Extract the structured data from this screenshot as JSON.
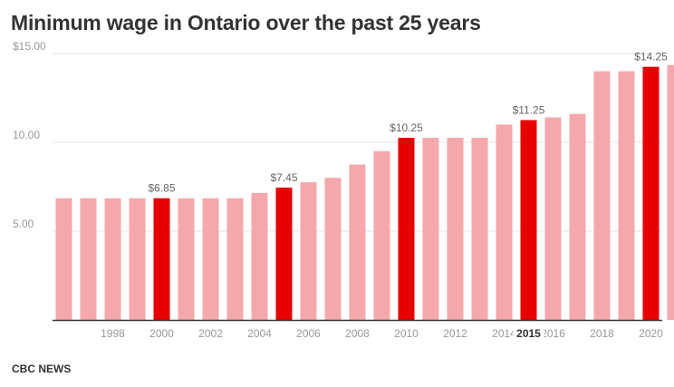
{
  "title": "Minimum wage in Ontario over the past 25 years",
  "source": "CBC NEWS",
  "colors": {
    "bar": "#f4a8ac",
    "highlight": "#e60000",
    "grid": "#e6e6e6",
    "axis": "#333333",
    "tick_text": "#999999",
    "label_text": "#666666",
    "title_text": "#333333"
  },
  "chart_data": {
    "type": "bar",
    "title": "Minimum wage in Ontario over the past 25 years",
    "xlabel": "",
    "ylabel": "",
    "ylim": [
      0,
      15
    ],
    "y_ticks": [
      {
        "value": 5,
        "label": "5.00"
      },
      {
        "value": 10,
        "label": "10.00"
      },
      {
        "value": 15,
        "label": "$15.00"
      }
    ],
    "grid": true,
    "x": [
      1996,
      1997,
      1998,
      1999,
      2000,
      2001,
      2002,
      2003,
      2004,
      2005,
      2006,
      2007,
      2008,
      2009,
      2010,
      2011,
      2012,
      2013,
      2014,
      2015,
      2016,
      2017,
      2018,
      2019,
      2020,
      2021
    ],
    "values": [
      6.85,
      6.85,
      6.85,
      6.85,
      6.85,
      6.85,
      6.85,
      6.85,
      7.15,
      7.45,
      7.75,
      8.0,
      8.75,
      9.5,
      10.25,
      10.25,
      10.25,
      10.25,
      11.0,
      11.25,
      11.4,
      11.6,
      14.0,
      14.0,
      14.25,
      14.35
    ],
    "highlighted": [
      2000,
      2005,
      2010,
      2015,
      2020
    ],
    "data_labels": [
      {
        "x": 2000,
        "text": "$6.85"
      },
      {
        "x": 2005,
        "text": "$7.45"
      },
      {
        "x": 2010,
        "text": "$10.25"
      },
      {
        "x": 2015,
        "text": "$11.25"
      },
      {
        "x": 2020,
        "text": "$14.25"
      }
    ],
    "x_tick_labels": [
      {
        "x": 1998,
        "text": "1998"
      },
      {
        "x": 2000,
        "text": "2000"
      },
      {
        "x": 2002,
        "text": "2002"
      },
      {
        "x": 2004,
        "text": "2004"
      },
      {
        "x": 2006,
        "text": "2006"
      },
      {
        "x": 2008,
        "text": "2008"
      },
      {
        "x": 2010,
        "text": "2010"
      },
      {
        "x": 2012,
        "text": "2012"
      },
      {
        "x": 2014,
        "text": "2014"
      },
      {
        "x": 2016,
        "text": "2016"
      },
      {
        "x": 2018,
        "text": "2018"
      },
      {
        "x": 2020,
        "text": "2020"
      }
    ],
    "hover_label": {
      "x": 2015,
      "text": "2015"
    }
  }
}
